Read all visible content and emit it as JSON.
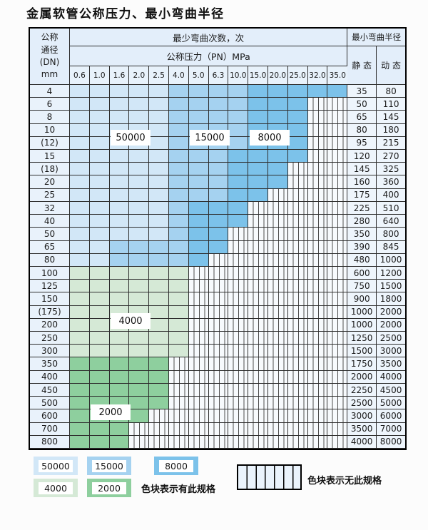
{
  "title": "金属软管公称压力、最小弯曲半径",
  "colors": {
    "c50000": "#d2e7f7",
    "c15000": "#a5d2f0",
    "c8000": "#7cc2ea",
    "c4000": "#d5e9d6",
    "c2000": "#8ecf9e",
    "header_bg": "#e3eefa",
    "hatch_bg": "#f7fafd"
  },
  "table": {
    "header": {
      "dn_label_lines": [
        "公称",
        "通径",
        "(DN)",
        "mm"
      ],
      "cycles_header": "最少弯曲次数，次",
      "pressure_header": "公称压力（PN）MPa",
      "radius_header": "最小弯曲半径",
      "static_label": "静 态",
      "dynamic_label": "动 态",
      "pressure_columns": [
        "0.6",
        "1.0",
        "1.6",
        "2.0",
        "2.5",
        "4.0",
        "5.0",
        "6.3",
        "10.0",
        "15.0",
        "20.0",
        "25.0",
        "32.0",
        "35.0"
      ]
    },
    "cell_code_legend": {
      "L": "50000",
      "M": "15000",
      "D": "8000",
      "4": "4000",
      "2": "2000",
      "H": "none"
    },
    "rows": [
      {
        "dn": "4",
        "cells": "LLLLLMMMMDDDDD",
        "static": "35",
        "dynamic": "80"
      },
      {
        "dn": "6",
        "cells": "LLLLLMMMMDDDHH",
        "static": "50",
        "dynamic": "110"
      },
      {
        "dn": "8",
        "cells": "LLLLLMMMMDDDHH",
        "static": "65",
        "dynamic": "145"
      },
      {
        "dn": "10",
        "cells": "LLLLLMMMMDDDHH",
        "static": "80",
        "dynamic": "180"
      },
      {
        "dn": "(12)",
        "cells": "LLLLLMMMMDDDHH",
        "static": "95",
        "dynamic": "215"
      },
      {
        "dn": "15",
        "cells": "LLLLLMMMDDDDHH",
        "static": "120",
        "dynamic": "270"
      },
      {
        "dn": "(18)",
        "cells": "LLLLLMMMDDDHHH",
        "static": "145",
        "dynamic": "325"
      },
      {
        "dn": "20",
        "cells": "LLLLLMMMDDDHHH",
        "static": "160",
        "dynamic": "360"
      },
      {
        "dn": "25",
        "cells": "LLLLLMMMDDHHHH",
        "static": "175",
        "dynamic": "400"
      },
      {
        "dn": "32",
        "cells": "LLLLLMDDDHHHHH",
        "static": "225",
        "dynamic": "510"
      },
      {
        "dn": "40",
        "cells": "LLLLLMDDDHHHHH",
        "static": "280",
        "dynamic": "640"
      },
      {
        "dn": "50",
        "cells": "LLLLLMDDHHHHHH",
        "static": "350",
        "dynamic": "800"
      },
      {
        "dn": "65",
        "cells": "LLMMMMDDHHHHHH",
        "static": "390",
        "dynamic": "845"
      },
      {
        "dn": "80",
        "cells": "LLMMMMDHHHHHHH",
        "static": "480",
        "dynamic": "1000"
      },
      {
        "dn": "100",
        "cells": "444444HHHHHHHH",
        "static": "600",
        "dynamic": "1200"
      },
      {
        "dn": "125",
        "cells": "444444HHHHHHHH",
        "static": "750",
        "dynamic": "1500"
      },
      {
        "dn": "150",
        "cells": "444444HHHHHHHH",
        "static": "900",
        "dynamic": "1800"
      },
      {
        "dn": "(175)",
        "cells": "444444HHHHHHHH",
        "static": "1000",
        "dynamic": "2000"
      },
      {
        "dn": "200",
        "cells": "444444HHHHHHHH",
        "static": "1000",
        "dynamic": "2000"
      },
      {
        "dn": "250",
        "cells": "444444HHHHHHHH",
        "static": "1250",
        "dynamic": "2500"
      },
      {
        "dn": "300",
        "cells": "444444HHHHHHHH",
        "static": "1500",
        "dynamic": "3000"
      },
      {
        "dn": "350",
        "cells": "22222HHHHHHHHH",
        "static": "1750",
        "dynamic": "3500"
      },
      {
        "dn": "400",
        "cells": "22222HHHHHHHHH",
        "static": "2000",
        "dynamic": "4000"
      },
      {
        "dn": "450",
        "cells": "22222HHHHHHHHH",
        "static": "2250",
        "dynamic": "4500"
      },
      {
        "dn": "500",
        "cells": "22222HHHHHHHHH",
        "static": "2500",
        "dynamic": "5000"
      },
      {
        "dn": "600",
        "cells": "2222HHHHHHHHHH",
        "static": "3000",
        "dynamic": "6000"
      },
      {
        "dn": "700",
        "cells": "222HHHHHHHHHHH",
        "static": "3500",
        "dynamic": "7000"
      },
      {
        "dn": "800",
        "cells": "222HHHHHHHHHHH",
        "static": "4000",
        "dynamic": "8000"
      }
    ],
    "region_labels": [
      "50000",
      "15000",
      "8000",
      "4000",
      "2000"
    ]
  },
  "legend": {
    "swatches": [
      {
        "value": "50000",
        "color_key": "c50000"
      },
      {
        "value": "15000",
        "color_key": "c15000"
      },
      {
        "value": "8000",
        "color_key": "c8000"
      },
      {
        "value": "4000",
        "color_key": "c4000"
      },
      {
        "value": "2000",
        "color_key": "c2000"
      }
    ],
    "available_label": "色块表示有此规格",
    "unavailable_label": "色块表示无此规格"
  }
}
